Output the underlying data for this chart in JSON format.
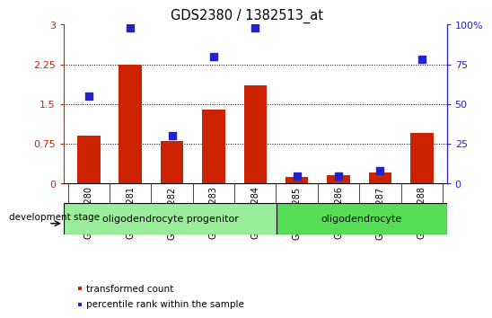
{
  "title": "GDS2380 / 1382513_at",
  "samples": [
    "GSM138280",
    "GSM138281",
    "GSM138282",
    "GSM138283",
    "GSM138284",
    "GSM138285",
    "GSM138286",
    "GSM138287",
    "GSM138288"
  ],
  "transformed_count": [
    0.9,
    2.25,
    0.8,
    1.4,
    1.85,
    0.12,
    0.16,
    0.22,
    0.95
  ],
  "percentile_rank": [
    55,
    98,
    30,
    80,
    98,
    5,
    5,
    8,
    78
  ],
  "ylim_left": [
    0,
    3
  ],
  "ylim_right": [
    0,
    100
  ],
  "yticks_left": [
    0,
    0.75,
    1.5,
    2.25,
    3
  ],
  "ytick_labels_left": [
    "0",
    "0.75",
    "1.5",
    "2.25",
    "3"
  ],
  "yticks_right": [
    0,
    25,
    50,
    75,
    100
  ],
  "ytick_labels_right": [
    "0",
    "25",
    "50",
    "75",
    "100%"
  ],
  "hlines": [
    0.75,
    1.5,
    2.25
  ],
  "bar_color": "#cc2200",
  "dot_color": "#2222cc",
  "groups": [
    {
      "label": "oligodendrocyte progenitor",
      "start": 0,
      "end": 5,
      "color": "#99ee99"
    },
    {
      "label": "oligodendrocyte",
      "start": 5,
      "end": 9,
      "color": "#55dd55"
    }
  ],
  "legend_items": [
    {
      "label": "transformed count",
      "color": "#cc2200"
    },
    {
      "label": "percentile rank within the sample",
      "color": "#2222cc"
    }
  ],
  "dev_stage_label": "development stage",
  "bar_width": 0.55,
  "dot_size": 28,
  "tick_area_color": "#cccccc"
}
